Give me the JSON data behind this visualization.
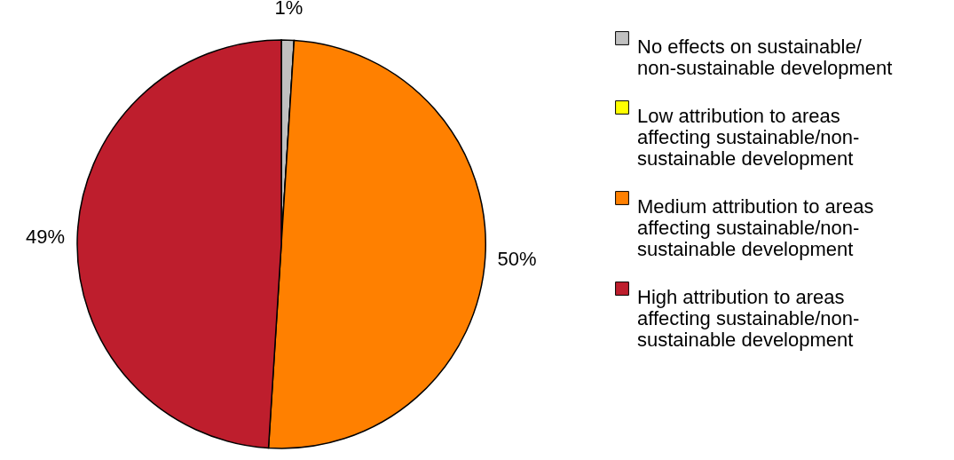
{
  "chart_data": {
    "type": "pie",
    "categories": [
      "No effects on sustainable/ non-sustainable development",
      "Low attribution to areas affecting sustainable/non-sustainable development",
      "Medium attribution to areas affecting sustainable/non-sustainable development",
      "High attribution to areas affecting sustainable/non-sustainable development"
    ],
    "values": [
      1,
      0,
      50,
      49
    ],
    "colors": [
      "#c0c0c0",
      "#ffff00",
      "#ff8000",
      "#be1e2d"
    ],
    "value_labels": [
      "1%",
      null,
      "50%",
      "49%"
    ],
    "legend": "right"
  }
}
